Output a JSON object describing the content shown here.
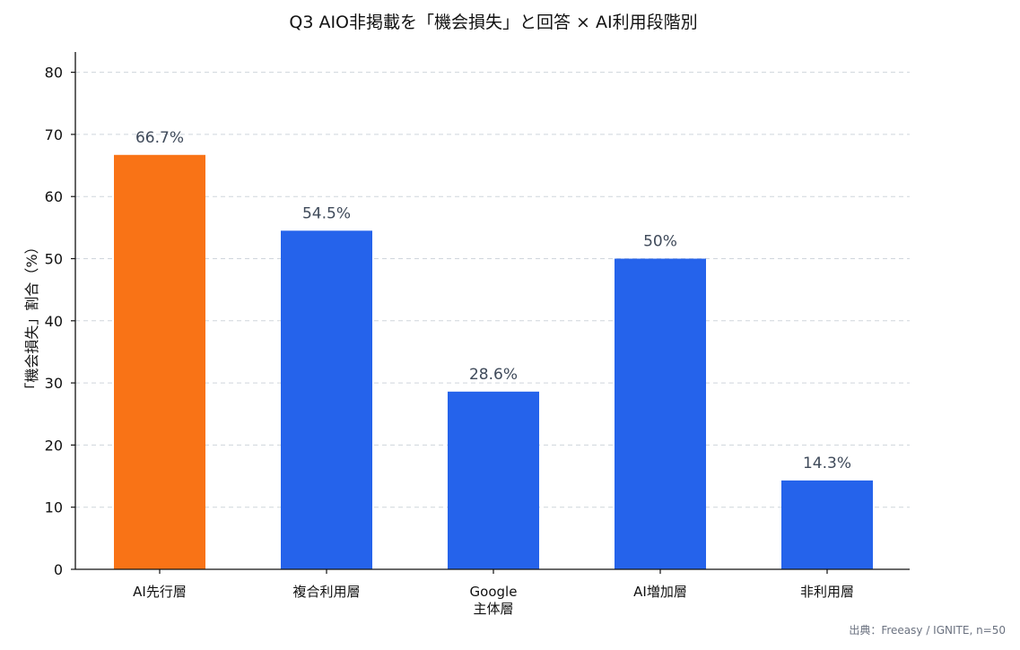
{
  "chart_data": {
    "type": "bar",
    "title": "Q3 AIO非掲載を「機会損失」と回答 × AI利用段階別",
    "xlabel": "",
    "ylabel": "「機会損失」割合（%）",
    "categories": [
      "AI先行層",
      "複合利用層",
      "Google\n主体層",
      "AI増加層",
      "非利用層"
    ],
    "values": [
      66.7,
      54.5,
      28.6,
      50,
      14.3
    ],
    "value_labels": [
      "66.7%",
      "54.5%",
      "28.6%",
      "50%",
      "14.3%"
    ],
    "bar_colors": [
      "#f97316",
      "#2563eb",
      "#2563eb",
      "#2563eb",
      "#2563eb"
    ],
    "ylim": [
      0,
      83
    ],
    "yticks": [
      0,
      10,
      20,
      30,
      40,
      50,
      60,
      70,
      80
    ],
    "grid": "horizontal-dashed",
    "legend": "none"
  },
  "source_note": "出典：Freeasy / IGNITE, n=50"
}
